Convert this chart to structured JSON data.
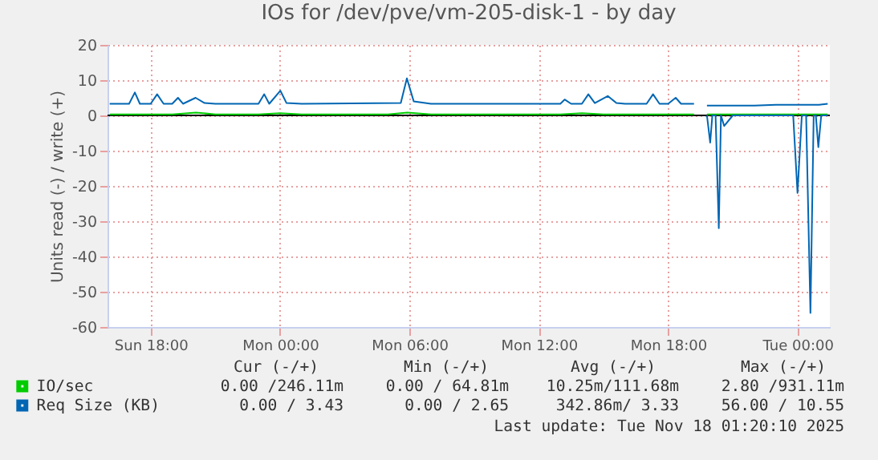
{
  "chart_data": {
    "type": "line",
    "title": "IOs for /dev/pve/vm-205-disk-1 - by day",
    "ylabel": "Units read (-) / write (+)",
    "xlim": [
      "2025-11-16T16:00",
      "2025-11-18T01:30"
    ],
    "xticks": [
      {
        "value": "2025-11-16T18:00",
        "label": "Sun 18:00"
      },
      {
        "value": "2025-11-17T00:00",
        "label": "Mon 00:00"
      },
      {
        "value": "2025-11-17T06:00",
        "label": "Mon 06:00"
      },
      {
        "value": "2025-11-17T12:00",
        "label": "Mon 12:00"
      },
      {
        "value": "2025-11-17T18:00",
        "label": "Mon 18:00"
      },
      {
        "value": "2025-11-18T00:00",
        "label": "Tue 00:00"
      }
    ],
    "ylim": [
      -60,
      20
    ],
    "yticks": [
      -60,
      -50,
      -40,
      -30,
      -20,
      -10,
      0,
      10,
      20
    ],
    "grid": true,
    "legend": "bottom",
    "ref_lines": [
      {
        "axis": "y",
        "value": 0,
        "color": "#000000"
      }
    ],
    "series": [
      {
        "name": "IO/sec",
        "color": "#00cc00",
        "x": [
          "2025-11-16T16:06",
          "2025-11-16T17:00",
          "2025-11-16T18:00",
          "2025-11-16T19:00",
          "2025-11-16T20:06",
          "2025-11-16T21:00",
          "2025-11-16T22:00",
          "2025-11-16T23:00",
          "2025-11-17T00:00",
          "2025-11-17T01:00",
          "2025-11-17T02:00",
          "2025-11-17T03:00",
          "2025-11-17T04:00",
          "2025-11-17T05:00",
          "2025-11-17T05:54",
          "2025-11-17T07:00",
          "2025-11-17T08:00",
          "2025-11-17T09:00",
          "2025-11-17T10:00",
          "2025-11-17T11:00",
          "2025-11-17T12:00",
          "2025-11-17T13:00",
          "2025-11-17T14:00",
          "2025-11-17T15:00",
          "2025-11-17T16:00",
          "2025-11-17T17:00",
          "2025-11-17T18:00",
          "2025-11-17T19:12",
          "2025-11-17T19:30",
          "2025-11-17T19:48",
          "2025-11-17T21:00",
          "2025-11-17T22:00",
          "2025-11-17T23:00",
          "2025-11-18T00:00",
          "2025-11-18T01:24"
        ],
        "values": [
          0.3,
          0.3,
          0.3,
          0.3,
          0.8,
          0.3,
          0.3,
          0.3,
          0.6,
          0.3,
          0.3,
          0.3,
          0.3,
          0.3,
          0.8,
          0.3,
          0.3,
          0.3,
          0.3,
          0.3,
          0.3,
          0.3,
          0.6,
          0.3,
          0.3,
          0.3,
          0.3,
          0.3,
          null,
          0.3,
          0.3,
          0.3,
          0.3,
          0.3,
          0.3
        ]
      },
      {
        "name": "Req Size (KB)",
        "color": "#0066b3",
        "x": [
          "2025-11-16T16:06",
          "2025-11-16T17:00",
          "2025-11-16T17:16",
          "2025-11-16T17:30",
          "2025-11-16T18:00",
          "2025-11-16T18:18",
          "2025-11-16T18:36",
          "2025-11-16T19:00",
          "2025-11-16T19:16",
          "2025-11-16T19:30",
          "2025-11-16T20:05",
          "2025-11-16T20:30",
          "2025-11-16T21:00",
          "2025-11-16T23:00",
          "2025-11-16T23:16",
          "2025-11-16T23:30",
          "2025-11-17T00:01",
          "2025-11-17T00:18",
          "2025-11-17T01:00",
          "2025-11-17T05:36",
          "2025-11-17T05:53",
          "2025-11-17T06:12",
          "2025-11-17T07:00",
          "2025-11-17T13:00",
          "2025-11-17T13:12",
          "2025-11-17T13:30",
          "2025-11-17T14:00",
          "2025-11-17T14:18",
          "2025-11-17T14:36",
          "2025-11-17T15:12",
          "2025-11-17T15:36",
          "2025-11-17T16:00",
          "2025-11-17T17:00",
          "2025-11-17T17:18",
          "2025-11-17T17:36",
          "2025-11-17T18:00",
          "2025-11-17T18:21",
          "2025-11-17T18:36",
          "2025-11-17T19:12",
          "2025-11-17T19:30",
          "2025-11-17T19:48",
          "2025-11-17T22:00",
          "2025-11-17T23:00",
          "2025-11-18T00:00",
          "2025-11-18T01:00",
          "2025-11-18T01:24"
        ],
        "values": [
          3.3,
          3.3,
          6.5,
          3.3,
          3.3,
          6,
          3.3,
          3.3,
          5,
          3.3,
          5,
          3.5,
          3.3,
          3.3,
          6,
          3.3,
          7,
          3.5,
          3.3,
          3.5,
          10.5,
          4,
          3.3,
          3.3,
          4.5,
          3.3,
          3.3,
          6,
          3.5,
          5.5,
          3.5,
          3.3,
          3.3,
          6,
          3.3,
          3.3,
          5,
          3.3,
          3.3,
          null,
          2.8,
          2.8,
          3,
          3,
          3,
          3.3
        ]
      },
      {
        "color": "#0066b3",
        "x": [
          "2025-11-17T19:48",
          "2025-11-17T19:57",
          "2025-11-17T20:03",
          "2025-11-17T20:12",
          "2025-11-17T20:21",
          "2025-11-17T20:27",
          "2025-11-17T20:36",
          "2025-11-17T21:00",
          "2025-11-17T22:00",
          "2025-11-17T23:00",
          "2025-11-17T23:48",
          "2025-11-18T00:00",
          "2025-11-18T00:12",
          "2025-11-18T00:24",
          "2025-11-18T00:36",
          "2025-11-18T00:45",
          "2025-11-18T00:51",
          "2025-11-18T00:58",
          "2025-11-18T01:06",
          "2025-11-18T01:24"
        ],
        "values": [
          0,
          -7.7,
          0,
          0,
          -32,
          0,
          -3,
          0,
          0,
          0,
          0,
          -22,
          0,
          0,
          -56,
          0,
          0,
          -9,
          0,
          0
        ]
      }
    ],
    "annotations": [
      "Cur (-/+)",
      "Min (-/+)",
      "Avg (-/+)",
      "Max (-/+)",
      "0.00 /246.11m",
      "0.00 / 64.81m",
      "10.25m/111.68m",
      "2.80 /931.11m",
      "0.00 /  3.43",
      "0.00 /  2.65",
      "342.86m/  3.33",
      "56.00 / 10.55",
      "Last update: Tue Nov 18 01:20:10 2025"
    ]
  }
}
